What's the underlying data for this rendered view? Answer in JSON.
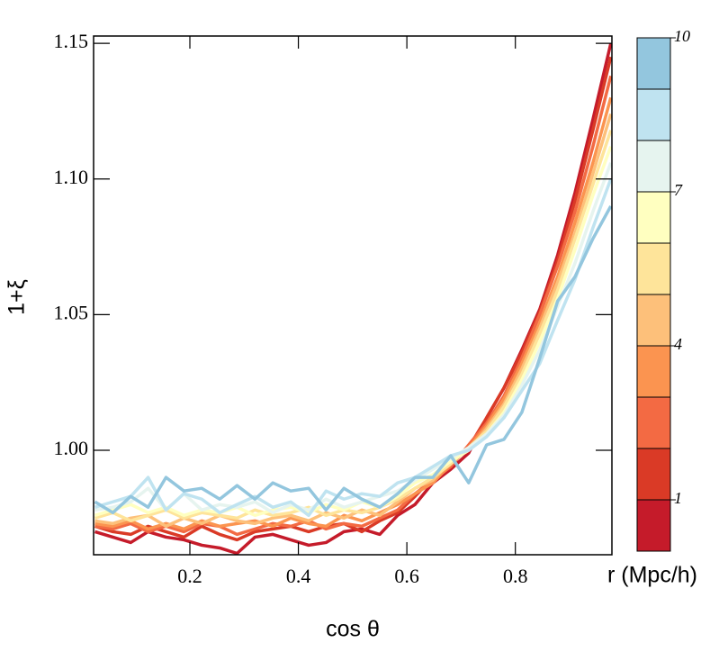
{
  "chart_data": {
    "type": "line",
    "xlabel": "cos θ",
    "ylabel": "1+ξ",
    "x": [
      0.025,
      0.058,
      0.091,
      0.123,
      0.156,
      0.189,
      0.222,
      0.255,
      0.287,
      0.32,
      0.353,
      0.386,
      0.419,
      0.451,
      0.484,
      0.517,
      0.55,
      0.583,
      0.615,
      0.648,
      0.681,
      0.714,
      0.747,
      0.779,
      0.812,
      0.845,
      0.878,
      0.91,
      0.943,
      0.976
    ],
    "xlim": [
      0.0225,
      0.978
    ],
    "xticks": [
      0.2,
      0.4,
      0.6,
      0.8
    ],
    "ylim": [
      0.9615,
      1.1527
    ],
    "yticks": [
      {
        "value": 1.0,
        "label": "1.00"
      },
      {
        "value": 1.05,
        "label": "1.05"
      },
      {
        "value": 1.1,
        "label": "1.10"
      },
      {
        "value": 1.15,
        "label": "1.15"
      }
    ],
    "series": [
      {
        "color": "#c51b2a",
        "values": [
          0.97,
          0.968,
          0.966,
          0.97,
          0.968,
          0.967,
          0.965,
          0.964,
          0.962,
          0.968,
          0.969,
          0.967,
          0.965,
          0.966,
          0.97,
          0.971,
          0.969,
          0.976,
          0.98,
          0.988,
          0.993,
          0.999,
          1.012,
          1.023,
          1.037,
          1.052,
          1.072,
          1.095,
          1.122,
          1.15
        ]
      },
      {
        "color": "#da3a26",
        "values": [
          0.972,
          0.97,
          0.969,
          0.972,
          0.97,
          0.968,
          0.972,
          0.969,
          0.967,
          0.97,
          0.971,
          0.972,
          0.97,
          0.972,
          0.973,
          0.97,
          0.974,
          0.977,
          0.983,
          0.99,
          0.995,
          1.001,
          1.012,
          1.023,
          1.036,
          1.051,
          1.07,
          1.092,
          1.118,
          1.145
        ]
      },
      {
        "color": "#f36a43",
        "values": [
          0.972,
          0.971,
          0.973,
          0.97,
          0.972,
          0.97,
          0.973,
          0.972,
          0.969,
          0.971,
          0.973,
          0.972,
          0.974,
          0.971,
          0.973,
          0.972,
          0.975,
          0.978,
          0.984,
          0.989,
          0.994,
          1.002,
          1.01,
          1.02,
          1.034,
          1.05,
          1.068,
          1.088,
          1.112,
          1.138
        ]
      },
      {
        "color": "#fb9450",
        "values": [
          0.973,
          0.972,
          0.974,
          0.971,
          0.973,
          0.971,
          0.974,
          0.972,
          0.973,
          0.974,
          0.972,
          0.975,
          0.973,
          0.972,
          0.976,
          0.974,
          0.977,
          0.98,
          0.984,
          0.988,
          0.995,
          1.001,
          1.009,
          1.019,
          1.032,
          1.047,
          1.064,
          1.084,
          1.106,
          1.13
        ]
      },
      {
        "color": "#fdc07a",
        "values": [
          0.974,
          0.973,
          0.975,
          0.976,
          0.972,
          0.975,
          0.973,
          0.976,
          0.974,
          0.973,
          0.975,
          0.976,
          0.974,
          0.977,
          0.975,
          0.978,
          0.976,
          0.981,
          0.986,
          0.989,
          0.996,
          1.0,
          1.008,
          1.017,
          1.03,
          1.045,
          1.062,
          1.08,
          1.102,
          1.124
        ]
      },
      {
        "color": "#fee49a",
        "values": [
          0.975,
          0.977,
          0.974,
          0.976,
          0.978,
          0.975,
          0.977,
          0.976,
          0.975,
          0.978,
          0.976,
          0.977,
          0.979,
          0.976,
          0.978,
          0.977,
          0.979,
          0.982,
          0.986,
          0.99,
          0.995,
          1.001,
          1.007,
          1.016,
          1.028,
          1.043,
          1.059,
          1.078,
          1.098,
          1.118
        ]
      },
      {
        "color": "#ffffc0",
        "values": [
          0.976,
          0.978,
          0.98,
          0.977,
          0.979,
          0.976,
          0.978,
          0.977,
          0.979,
          0.976,
          0.978,
          0.979,
          0.977,
          0.98,
          0.978,
          0.981,
          0.979,
          0.983,
          0.988,
          0.991,
          0.996,
          1.0,
          1.006,
          1.014,
          1.026,
          1.04,
          1.056,
          1.074,
          1.094,
          1.112
        ]
      },
      {
        "color": "#e6f4ef",
        "values": [
          0.978,
          0.979,
          0.981,
          0.986,
          0.978,
          0.984,
          0.978,
          0.98,
          0.979,
          0.981,
          0.977,
          0.98,
          0.978,
          0.982,
          0.979,
          0.981,
          0.983,
          0.985,
          0.989,
          0.993,
          0.997,
          1.001,
          1.006,
          1.013,
          1.024,
          1.037,
          1.053,
          1.069,
          1.088,
          1.106
        ]
      },
      {
        "color": "#bfe3f0",
        "values": [
          0.979,
          0.981,
          0.983,
          0.99,
          0.978,
          0.984,
          0.982,
          0.977,
          0.98,
          0.983,
          0.979,
          0.981,
          0.976,
          0.985,
          0.982,
          0.984,
          0.983,
          0.988,
          0.99,
          0.994,
          0.998,
          1.0,
          1.005,
          1.012,
          1.022,
          1.032,
          1.048,
          1.063,
          1.082,
          1.1
        ]
      },
      {
        "color": "#93c6de",
        "values": [
          0.981,
          0.977,
          0.983,
          0.979,
          0.99,
          0.985,
          0.986,
          0.982,
          0.987,
          0.982,
          0.988,
          0.985,
          0.986,
          0.978,
          0.986,
          0.982,
          0.979,
          0.984,
          0.99,
          0.99,
          0.998,
          0.988,
          1.002,
          1.004,
          1.014,
          1.034,
          1.055,
          1.064,
          1.078,
          1.09
        ]
      }
    ],
    "colorbar": {
      "label": "r (Mpc/h)",
      "lim": [
        0,
        10
      ],
      "ticks": [
        1,
        4,
        7,
        10
      ],
      "colors": [
        "#c51b2a",
        "#da3a26",
        "#f36a43",
        "#fb9450",
        "#fdc07a",
        "#fee49a",
        "#ffffc0",
        "#e6f4ef",
        "#bfe3f0",
        "#93c6de"
      ]
    }
  }
}
